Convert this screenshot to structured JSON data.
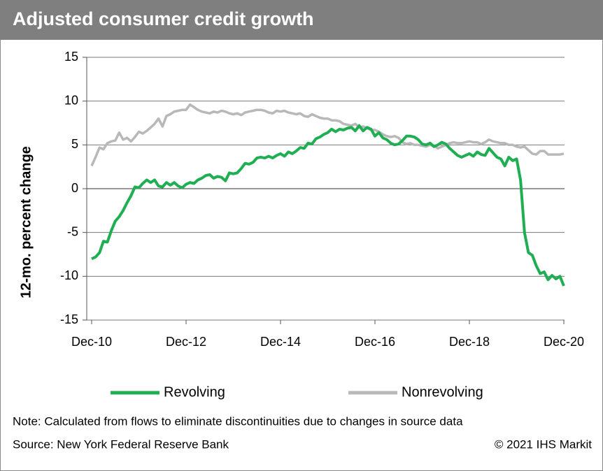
{
  "chart_data": {
    "type": "line",
    "title": "Adjusted consumer credit growth",
    "y_label": "12-mo. percent change",
    "note": "Note: Calculated from flows to eliminate discontinuities due to changes in source data",
    "source": "Source: New York  Federal  Reserve Bank",
    "copyright": "© 2021 IHS Markit",
    "categories": [
      "Dec-10",
      null,
      null,
      null,
      null,
      null,
      null,
      null,
      null,
      null,
      null,
      null,
      null,
      null,
      null,
      null,
      null,
      null,
      null,
      null,
      null,
      null,
      null,
      null,
      "Dec-12",
      null,
      null,
      null,
      null,
      null,
      null,
      null,
      null,
      null,
      null,
      null,
      null,
      null,
      null,
      null,
      null,
      null,
      null,
      null,
      null,
      null,
      null,
      null,
      "Dec-14",
      null,
      null,
      null,
      null,
      null,
      null,
      null,
      null,
      null,
      null,
      null,
      null,
      null,
      null,
      null,
      null,
      null,
      null,
      null,
      null,
      null,
      null,
      null,
      "Dec-16",
      null,
      null,
      null,
      null,
      null,
      null,
      null,
      null,
      null,
      null,
      null,
      null,
      null,
      null,
      null,
      null,
      null,
      null,
      null,
      null,
      null,
      null,
      null,
      "Dec-18",
      null,
      null,
      null,
      null,
      null,
      null,
      null,
      null,
      null,
      null,
      null,
      null,
      null,
      null,
      null,
      null,
      null,
      null,
      null,
      null,
      null,
      null,
      null,
      "Dec-20"
    ],
    "series": [
      {
        "name": "Revolving",
        "color": "#1fae52",
        "values": [
          -8.0,
          -7.8,
          -7.3,
          -6.0,
          -6.1,
          -4.8,
          -3.7,
          -3.2,
          -2.5,
          -1.6,
          -0.8,
          0.2,
          0.1,
          0.6,
          1.0,
          0.7,
          1.0,
          0.3,
          0.2,
          0.7,
          0.4,
          0.7,
          0.3,
          0.1,
          0.5,
          0.7,
          0.6,
          1.0,
          1.2,
          1.5,
          1.6,
          1.2,
          1.4,
          1.3,
          0.9,
          1.8,
          1.7,
          1.8,
          2.3,
          2.9,
          2.8,
          3.0,
          3.5,
          3.6,
          3.5,
          3.7,
          3.5,
          3.8,
          4.0,
          3.7,
          4.2,
          4.0,
          4.3,
          4.7,
          4.6,
          5.2,
          5.1,
          5.7,
          5.9,
          6.2,
          6.4,
          6.8,
          6.5,
          6.8,
          6.7,
          6.9,
          7.0,
          6.6,
          7.2,
          6.6,
          7.0,
          6.8,
          6.0,
          6.4,
          5.8,
          5.6,
          5.2,
          5.0,
          5.1,
          5.5,
          6.0,
          6.0,
          5.9,
          5.6,
          5.1,
          5.0,
          5.2,
          4.8,
          5.0,
          5.3,
          5.1,
          4.6,
          4.2,
          3.8,
          3.6,
          3.8,
          4.0,
          3.7,
          4.2,
          3.9,
          3.8,
          4.6,
          4.1,
          3.6,
          3.4,
          2.6,
          3.6,
          3.2,
          3.4,
          1.0,
          -5.0,
          -7.3,
          -7.6,
          -8.8,
          -9.7,
          -9.5,
          -10.4,
          -9.9,
          -10.3,
          -10.0,
          -11.1
        ]
      },
      {
        "name": "Nonrevolving",
        "color": "#b8b8b8",
        "values": [
          2.6,
          3.6,
          4.7,
          4.5,
          5.2,
          5.4,
          5.5,
          6.4,
          5.6,
          5.8,
          5.4,
          5.9,
          6.5,
          6.3,
          6.6,
          7.0,
          7.4,
          8.0,
          7.1,
          8.3,
          8.5,
          8.8,
          8.9,
          9.0,
          9.0,
          9.6,
          9.3,
          9.0,
          8.8,
          8.7,
          8.6,
          8.8,
          8.7,
          8.9,
          8.8,
          8.6,
          8.5,
          8.6,
          8.4,
          8.7,
          8.8,
          8.9,
          9.0,
          9.0,
          8.9,
          8.7,
          8.6,
          8.9,
          8.8,
          8.9,
          8.7,
          8.6,
          8.5,
          8.6,
          8.3,
          8.2,
          8.5,
          8.3,
          8.1,
          8.0,
          8.0,
          7.8,
          7.8,
          7.7,
          7.4,
          7.3,
          7.2,
          7.4,
          7.0,
          7.1,
          6.9,
          6.7,
          6.7,
          6.5,
          6.2,
          6.0,
          5.9,
          6.0,
          5.8,
          5.3,
          5.1,
          5.2,
          5.0,
          5.0,
          4.9,
          4.8,
          5.0,
          4.9,
          4.6,
          4.8,
          5.0,
          5.2,
          5.3,
          5.2,
          5.2,
          5.3,
          5.4,
          5.3,
          5.3,
          5.1,
          5.3,
          5.6,
          5.4,
          5.3,
          5.2,
          5.2,
          5.0,
          5.0,
          4.8,
          4.7,
          4.8,
          4.4,
          4.0,
          3.9,
          4.3,
          4.3,
          3.9,
          3.9,
          3.9,
          3.9,
          4.0
        ]
      }
    ],
    "ylim": [
      -15,
      15
    ],
    "yticks": [
      -15,
      -10,
      -5,
      0,
      5,
      10,
      15
    ],
    "grid": true
  }
}
